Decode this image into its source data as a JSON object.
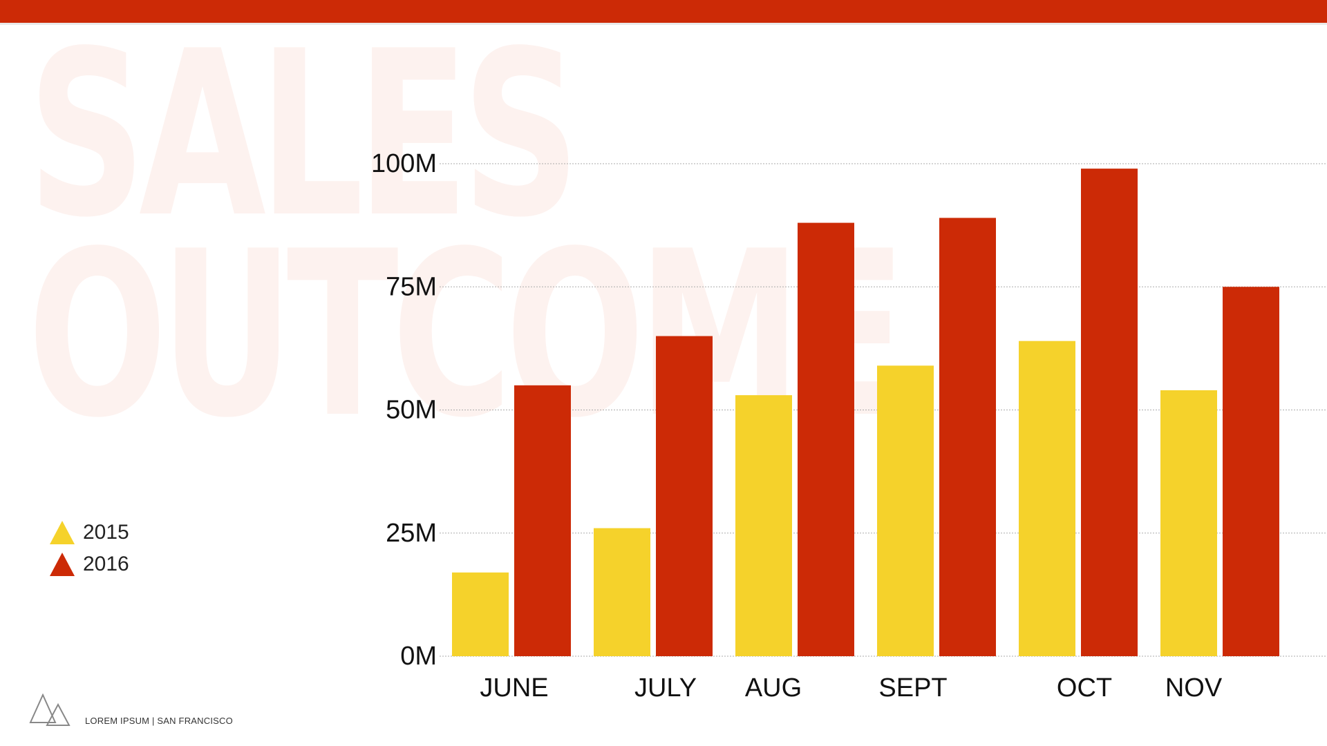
{
  "background_title": {
    "line1": "SALES",
    "line2": "OUTCOME"
  },
  "footer": {
    "text": "LOREM IPSUM | SAN FRANCISCO",
    "logo_icon": "triangles-logo-icon"
  },
  "colors": {
    "accent": "#cc2a06",
    "series_2015": "#f5d22b",
    "series_2016": "#cc2a06",
    "background_text": "#fdf2ef",
    "grid": "#aaaaaa"
  },
  "legend": {
    "items": [
      {
        "label": "2015",
        "color": "#f5d22b",
        "icon": "triangle-icon"
      },
      {
        "label": "2016",
        "color": "#cc2a06",
        "icon": "triangle-icon"
      }
    ]
  },
  "chart_data": {
    "type": "bar",
    "categories": [
      "JUNE",
      "JULY",
      "AUG",
      "SEPT",
      "OCT",
      "NOV"
    ],
    "series": [
      {
        "name": "2015",
        "color": "#f5d22b",
        "values": [
          17,
          26,
          53,
          59,
          64,
          54
        ]
      },
      {
        "name": "2016",
        "color": "#cc2a06",
        "values": [
          55,
          65,
          88,
          89,
          99,
          75
        ]
      }
    ],
    "yticks": [
      0,
      25,
      50,
      75,
      100
    ],
    "ytick_labels": [
      "0M",
      "25M",
      "50M",
      "75M",
      "100M"
    ],
    "ylim": [
      0,
      100
    ],
    "grid": true,
    "legend_position": "left"
  }
}
